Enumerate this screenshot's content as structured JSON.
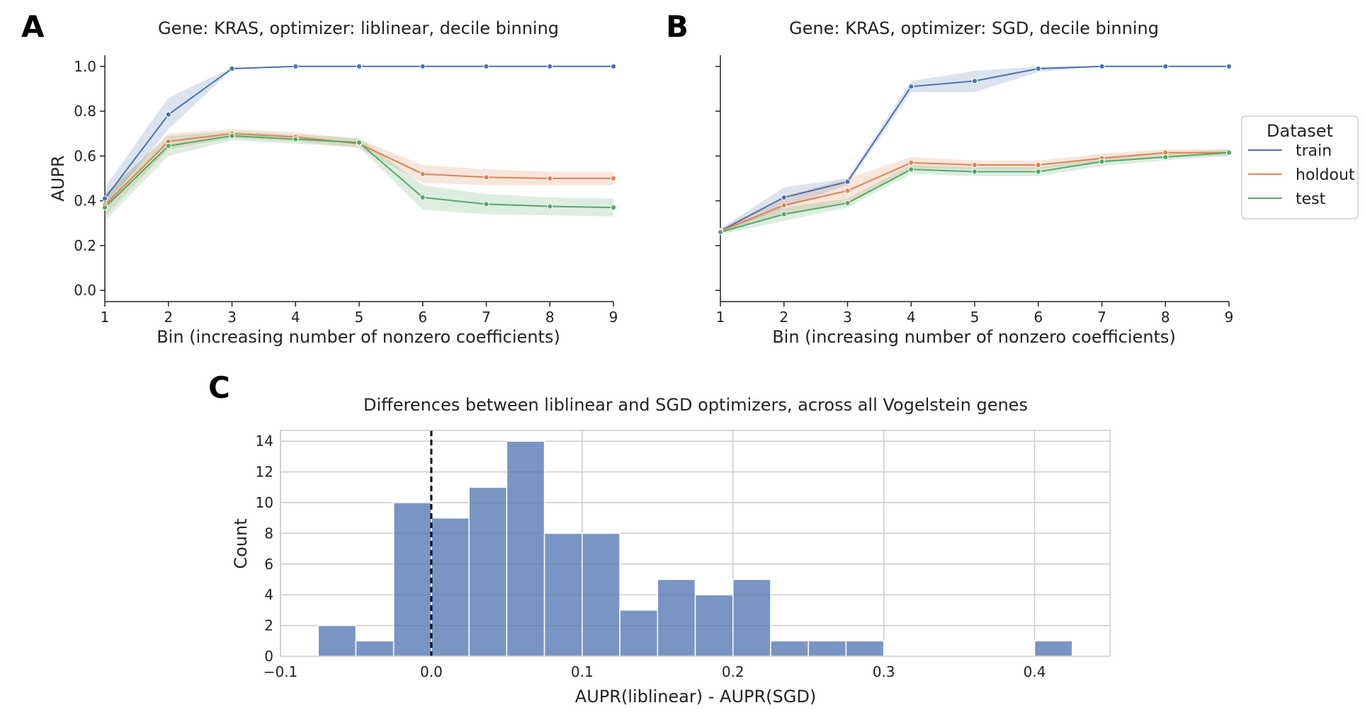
{
  "colors": {
    "train": "#4c72b0",
    "holdout": "#dd8452",
    "test": "#55a868",
    "bar": "#4c72b0"
  },
  "chart_data": [
    {
      "panel": "A",
      "type": "line",
      "title": "Gene: KRAS, optimizer: liblinear, decile binning",
      "xlabel": "Bin (increasing number of nonzero coefficients)",
      "ylabel": "AUPR",
      "x": [
        1,
        2,
        3,
        4,
        5,
        6,
        7,
        8,
        9
      ],
      "xlim": [
        1,
        9
      ],
      "ylim": [
        -0.05,
        1.05
      ],
      "yticks": [
        0.0,
        0.2,
        0.4,
        0.6,
        0.8,
        1.0
      ],
      "series": [
        {
          "name": "train",
          "color_key": "train",
          "values": [
            0.41,
            0.785,
            0.99,
            1.0,
            1.0,
            1.0,
            1.0,
            1.0,
            1.0
          ],
          "lower": [
            0.37,
            0.72,
            0.985,
            1.0,
            1.0,
            1.0,
            1.0,
            1.0,
            1.0
          ],
          "upper": [
            0.46,
            0.86,
            0.995,
            1.0,
            1.0,
            1.0,
            1.0,
            1.0,
            1.0
          ]
        },
        {
          "name": "holdout",
          "color_key": "holdout",
          "values": [
            0.38,
            0.665,
            0.7,
            0.685,
            0.655,
            0.52,
            0.505,
            0.5,
            0.5
          ],
          "lower": [
            0.33,
            0.63,
            0.68,
            0.665,
            0.635,
            0.48,
            0.47,
            0.47,
            0.47
          ],
          "upper": [
            0.43,
            0.7,
            0.72,
            0.705,
            0.675,
            0.56,
            0.54,
            0.53,
            0.53
          ]
        },
        {
          "name": "test",
          "color_key": "test",
          "values": [
            0.37,
            0.645,
            0.69,
            0.675,
            0.66,
            0.415,
            0.385,
            0.375,
            0.37
          ],
          "lower": [
            0.31,
            0.6,
            0.67,
            0.655,
            0.64,
            0.36,
            0.34,
            0.335,
            0.33
          ],
          "upper": [
            0.43,
            0.69,
            0.71,
            0.695,
            0.68,
            0.47,
            0.43,
            0.415,
            0.41
          ]
        }
      ]
    },
    {
      "panel": "B",
      "type": "line",
      "title": "Gene: KRAS, optimizer: SGD, decile binning",
      "xlabel": "Bin (increasing number of nonzero coefficients)",
      "ylabel": "",
      "x": [
        1,
        2,
        3,
        4,
        5,
        6,
        7,
        8,
        9
      ],
      "xlim": [
        1,
        9
      ],
      "ylim": [
        -0.05,
        1.05
      ],
      "yticks": [
        0.0,
        0.2,
        0.4,
        0.6,
        0.8,
        1.0
      ],
      "legend": {
        "title": "Dataset",
        "placement": "right",
        "entries": [
          {
            "label": "train",
            "color_key": "train"
          },
          {
            "label": "holdout",
            "color_key": "holdout"
          },
          {
            "label": "test",
            "color_key": "test"
          }
        ]
      },
      "series": [
        {
          "name": "train",
          "color_key": "train",
          "values": [
            0.265,
            0.415,
            0.485,
            0.91,
            0.935,
            0.99,
            1.0,
            1.0,
            1.0
          ],
          "lower": [
            0.255,
            0.37,
            0.47,
            0.885,
            0.885,
            0.975,
            1.0,
            1.0,
            1.0
          ],
          "upper": [
            0.275,
            0.46,
            0.5,
            0.935,
            0.98,
            1.0,
            1.0,
            1.0,
            1.0
          ]
        },
        {
          "name": "holdout",
          "color_key": "holdout",
          "values": [
            0.265,
            0.38,
            0.445,
            0.57,
            0.56,
            0.56,
            0.59,
            0.615,
            0.615
          ],
          "lower": [
            0.255,
            0.34,
            0.39,
            0.545,
            0.54,
            0.54,
            0.57,
            0.6,
            0.6
          ],
          "upper": [
            0.275,
            0.42,
            0.5,
            0.595,
            0.58,
            0.58,
            0.61,
            0.63,
            0.63
          ]
        },
        {
          "name": "test",
          "color_key": "test",
          "values": [
            0.26,
            0.34,
            0.39,
            0.54,
            0.53,
            0.53,
            0.575,
            0.595,
            0.615
          ],
          "lower": [
            0.25,
            0.31,
            0.37,
            0.52,
            0.51,
            0.51,
            0.555,
            0.58,
            0.6
          ],
          "upper": [
            0.27,
            0.37,
            0.41,
            0.56,
            0.55,
            0.55,
            0.595,
            0.61,
            0.63
          ]
        }
      ]
    },
    {
      "panel": "C",
      "type": "bar",
      "subtype": "histogram",
      "title": "Differences between liblinear and SGD optimizers, across all Vogelstein genes",
      "xlabel": "AUPR(liblinear) - AUPR(SGD)",
      "ylabel": "Count",
      "xlim": [
        -0.1,
        0.45
      ],
      "ylim": [
        0,
        14.7
      ],
      "xticks": [
        -0.1,
        0.0,
        0.1,
        0.2,
        0.3,
        0.4
      ],
      "xtick_labels": [
        "−0.1",
        "0.0",
        "0.1",
        "0.2",
        "0.3",
        "0.4"
      ],
      "yticks": [
        0,
        2,
        4,
        6,
        8,
        10,
        12,
        14
      ],
      "grid": true,
      "reference_line": {
        "x": 0.0,
        "style": "dashed",
        "color": "#000000"
      },
      "bin_edges": [
        -0.075,
        -0.05,
        -0.025,
        0.0,
        0.025,
        0.05,
        0.075,
        0.1,
        0.125,
        0.15,
        0.175,
        0.2,
        0.225,
        0.25,
        0.275,
        0.3,
        0.325,
        0.35,
        0.375,
        0.4,
        0.425
      ],
      "counts": [
        2,
        1,
        10,
        9,
        11,
        14,
        8,
        8,
        3,
        5,
        4,
        5,
        1,
        1,
        1,
        0,
        0,
        0,
        0,
        1
      ]
    }
  ]
}
